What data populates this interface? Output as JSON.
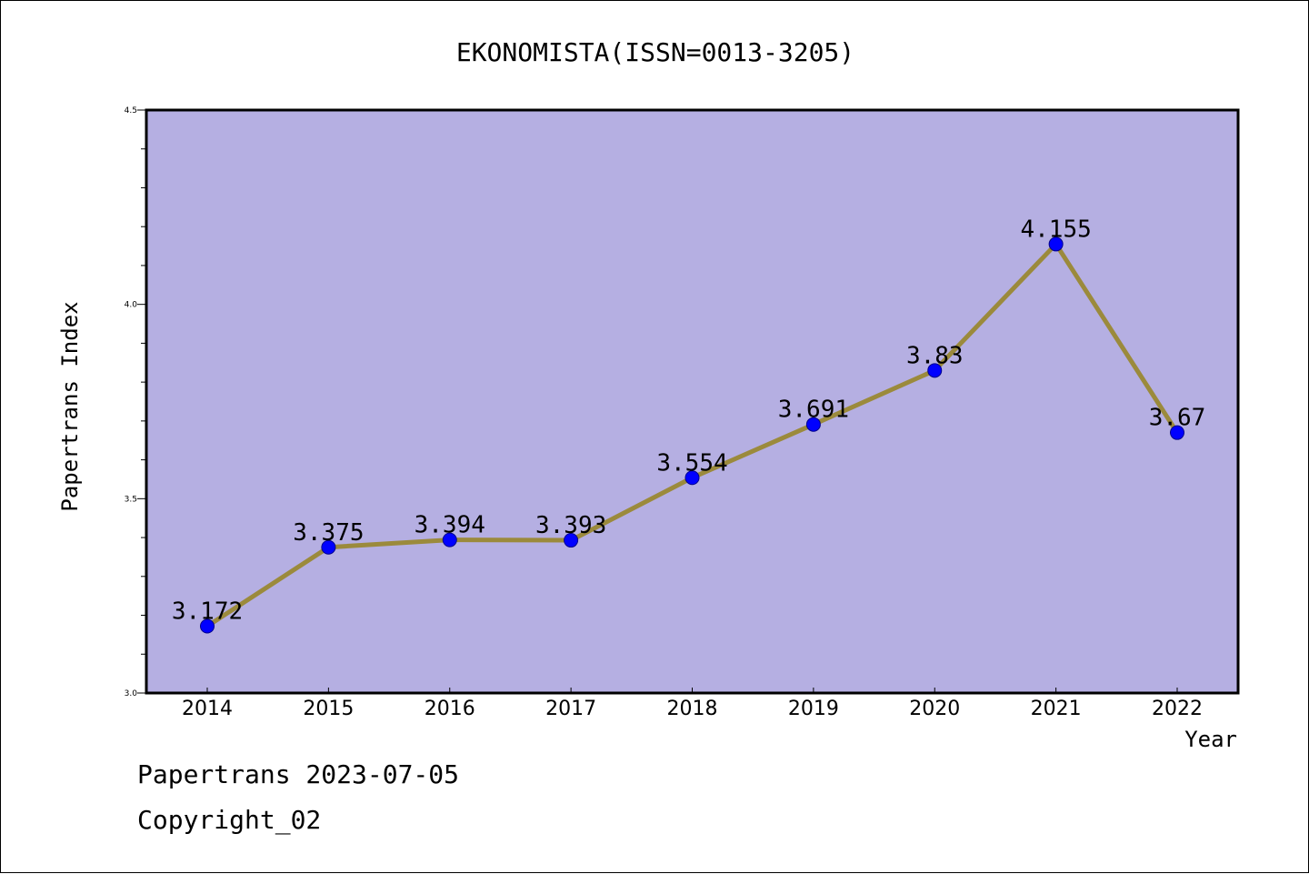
{
  "footer": {
    "line1": "Papertrans 2023-07-05",
    "line2": "Copyright_02"
  },
  "colors": {
    "plot_background": "#b5afe2",
    "line": "#9b8a3c",
    "marker": "#0000ff",
    "marker_edge": "#00008b"
  },
  "chart_data": {
    "type": "line",
    "title": "EKONOMISTA(ISSN=0013-3205)",
    "xlabel": "Year",
    "ylabel": "Papertrans Index",
    "categories": [
      "2014",
      "2015",
      "2016",
      "2017",
      "2018",
      "2019",
      "2020",
      "2021",
      "2022"
    ],
    "series": [
      {
        "values": [
          3.172,
          3.375,
          3.394,
          3.393,
          3.554,
          3.691,
          3.83,
          4.155,
          3.67
        ],
        "labels": [
          "3.172",
          "3.375",
          "3.394",
          "3.393",
          "3.554",
          "3.691",
          "3.83",
          "4.155",
          "3.67"
        ]
      }
    ],
    "ylim": [
      3.0,
      4.5
    ],
    "yticks": [
      "3.0",
      "3.5",
      "4.0",
      "4.5"
    ],
    "grid": false,
    "legend": "none"
  }
}
